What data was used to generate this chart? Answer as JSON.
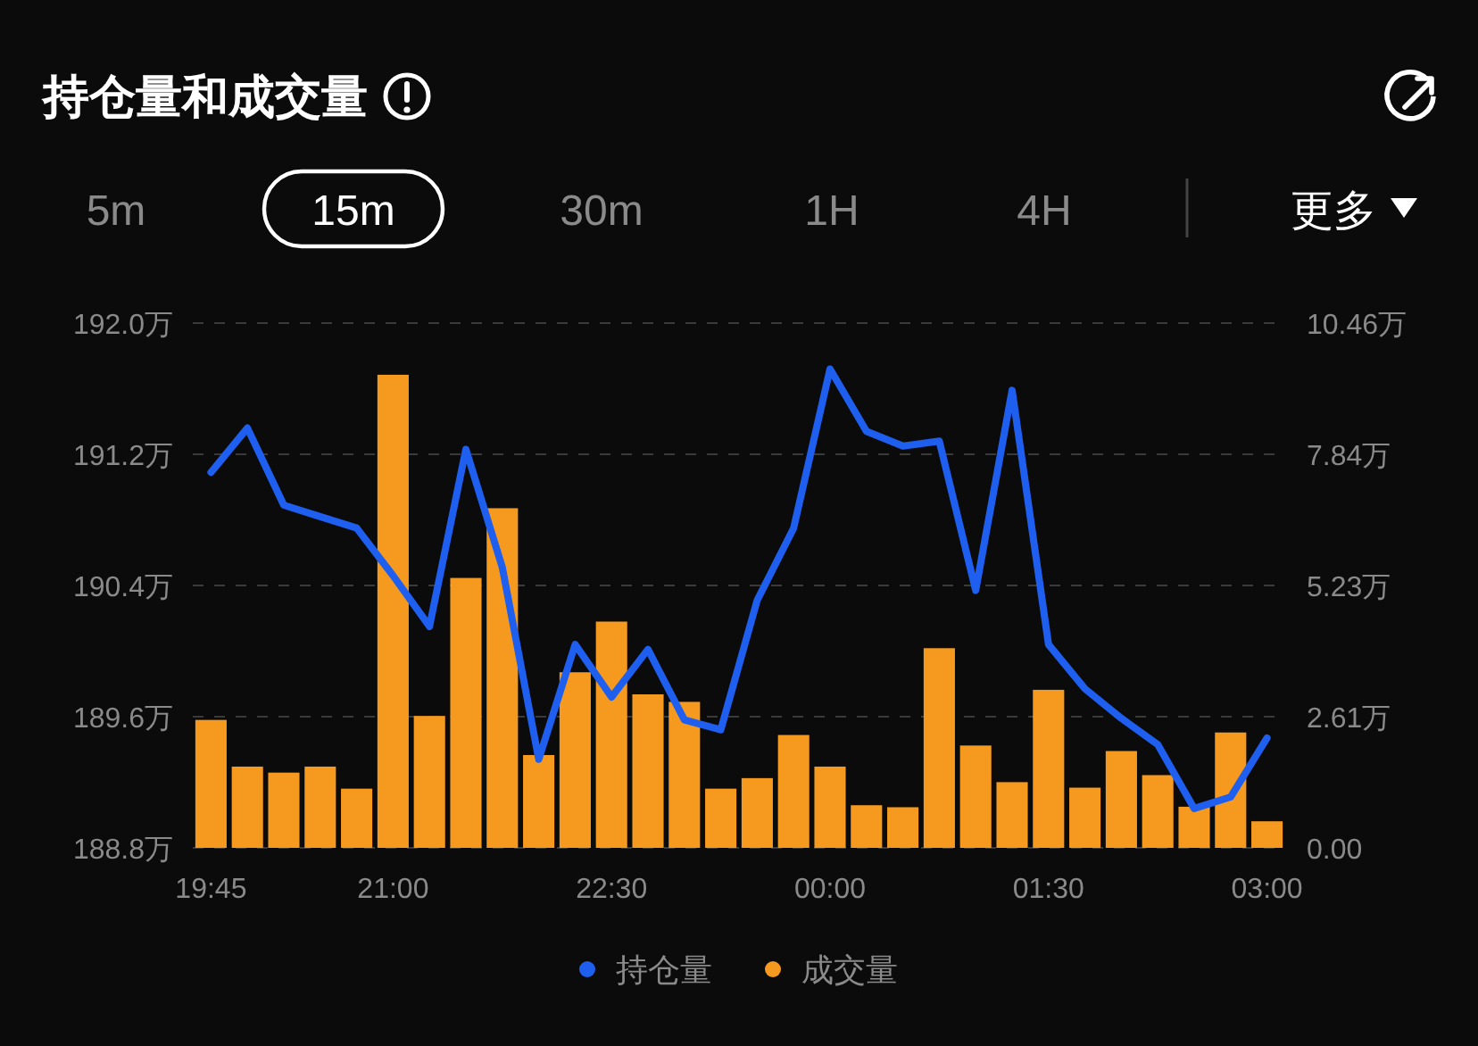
{
  "chart_data": {
    "type": "bar",
    "title": "持仓量和成交量",
    "annotations": [
      "5m",
      "15m",
      "30m",
      "1H",
      "4H",
      "更多"
    ],
    "x": [
      "2000-01-01T19:45",
      "2000-01-01T20:00",
      "2000-01-01T20:15",
      "2000-01-01T20:30",
      "2000-01-01T20:45",
      "2000-01-01T21:00",
      "2000-01-01T21:15",
      "2000-01-01T21:30",
      "2000-01-01T21:45",
      "2000-01-01T22:00",
      "2000-01-01T22:15",
      "2000-01-01T22:30",
      "2000-01-01T22:45",
      "2000-01-01T23:00",
      "2000-01-01T23:15",
      "2000-01-01T23:30",
      "2000-01-01T23:45",
      "2000-01-02T00:00",
      "2000-01-02T00:15",
      "2000-01-02T00:30",
      "2000-01-02T00:45",
      "2000-01-02T01:00",
      "2000-01-02T01:15",
      "2000-01-02T01:30",
      "2000-01-02T01:45",
      "2000-01-02T02:00",
      "2000-01-02T02:15",
      "2000-01-02T02:30",
      "2000-01-02T02:45",
      "2000-01-02T03:00"
    ],
    "xlim": [
      "2000-01-01T19:37:30",
      "2000-01-02T03:07:30"
    ],
    "xticks": [
      {
        "value": "2000-01-01T19:45",
        "label": "19:45"
      },
      {
        "value": "2000-01-01T21:00",
        "label": "21:00"
      },
      {
        "value": "2000-01-01T22:30",
        "label": "22:30"
      },
      {
        "value": "2000-01-02T00:00",
        "label": "00:00"
      },
      {
        "value": "2000-01-02T01:30",
        "label": "01:30"
      },
      {
        "value": "2000-01-02T03:00",
        "label": "03:00"
      }
    ],
    "ylim": [
      188.8,
      192.0
    ],
    "yticks": [
      {
        "value": 188.8,
        "label": "188.8万"
      },
      {
        "value": 189.6,
        "label": "189.6万"
      },
      {
        "value": 190.4,
        "label": "190.4万"
      },
      {
        "value": 191.2,
        "label": "191.2万"
      },
      {
        "value": 192.0,
        "label": "192.0万"
      }
    ],
    "y2lim": [
      0,
      10.46
    ],
    "y2ticks": [
      {
        "value": 0,
        "label": "0.00"
      },
      {
        "value": 2.615,
        "label": "2.61万"
      },
      {
        "value": 5.23,
        "label": "5.23万"
      },
      {
        "value": 7.845,
        "label": "7.84万"
      },
      {
        "value": 10.46,
        "label": "10.46万"
      }
    ],
    "grid": "y",
    "legend": "bottom",
    "series": [
      {
        "name": "持仓量",
        "type": "line",
        "color": "#1f5ff0",
        "values": [
          191.09,
          191.36,
          190.89,
          190.82,
          190.75,
          190.46,
          190.15,
          191.23,
          190.51,
          189.34,
          190.04,
          189.72,
          190.01,
          189.58,
          189.52,
          190.31,
          190.75,
          191.72,
          191.34,
          191.25,
          191.28,
          190.37,
          191.59,
          190.04,
          189.77,
          189.59,
          189.43,
          189.04,
          189.11,
          189.47
        ]
      },
      {
        "name": "成交量",
        "axis": "y2",
        "color": "#f59a1f",
        "values": [
          2.55,
          1.62,
          1.5,
          1.62,
          1.18,
          9.43,
          2.63,
          5.38,
          6.77,
          1.85,
          3.5,
          4.51,
          3.06,
          2.91,
          1.18,
          1.39,
          2.25,
          1.62,
          0.85,
          0.81,
          3.98,
          2.04,
          1.31,
          3.15,
          1.2,
          1.93,
          1.45,
          0.82,
          2.3,
          0.53
        ]
      }
    ]
  }
}
